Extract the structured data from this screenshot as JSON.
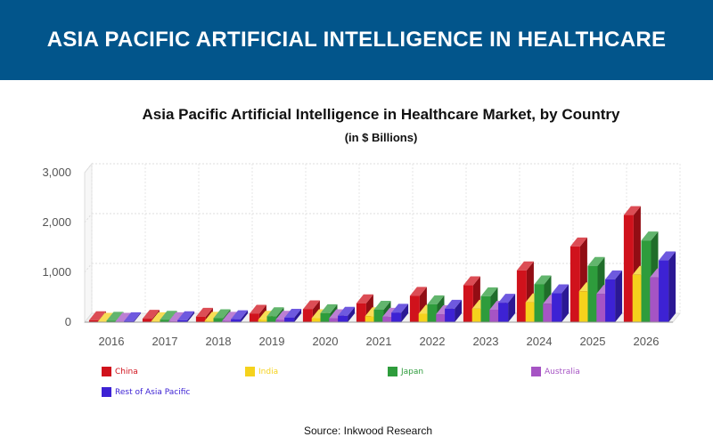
{
  "banner": {
    "title": "ASIA PACIFIC ARTIFICIAL INTELLIGENCE IN HEALTHCARE"
  },
  "source": "Source: Inkwood Research",
  "chart_data": {
    "type": "bar",
    "title": "Asia Pacific Artificial Intelligence in Healthcare Market, by Country",
    "subtitle": "(in $ Billions)",
    "xlabel": "",
    "ylabel": "",
    "ylim": [
      0,
      3000
    ],
    "yticks": [
      0,
      1000,
      2000,
      3000
    ],
    "ytick_labels": [
      "0",
      "1,000",
      "2,000",
      "3,000"
    ],
    "grid": true,
    "legend_position": "bottom",
    "categories": [
      "2016",
      "2017",
      "2018",
      "2019",
      "2020",
      "2021",
      "2022",
      "2023",
      "2024",
      "2025",
      "2026"
    ],
    "series": [
      {
        "name": "China",
        "color": "#d0121c",
        "values": [
          40,
          70,
          110,
          170,
          260,
          380,
          530,
          740,
          1040,
          1520,
          2150
        ]
      },
      {
        "name": "India",
        "color": "#f5d21c",
        "values": [
          10,
          20,
          30,
          50,
          80,
          120,
          170,
          270,
          400,
          620,
          950
        ]
      },
      {
        "name": "Japan",
        "color": "#2e9c3c",
        "values": [
          30,
          50,
          80,
          120,
          180,
          250,
          360,
          520,
          760,
          1130,
          1640
        ]
      },
      {
        "name": "Australia",
        "color": "#a654c4",
        "values": [
          10,
          20,
          30,
          50,
          80,
          110,
          160,
          250,
          370,
          570,
          900
        ]
      },
      {
        "name": "Rest of Asia Pacific",
        "color": "#3d22d4",
        "values": [
          20,
          40,
          60,
          90,
          130,
          190,
          270,
          390,
          580,
          860,
          1240
        ]
      }
    ]
  }
}
